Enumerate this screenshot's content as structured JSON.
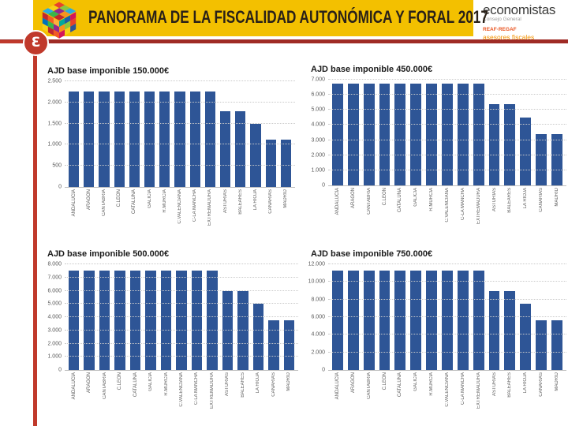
{
  "header": {
    "banner_title": "PANORAMA DE LA FISCALIDAD AUTONÓMICA Y FORAL 2017",
    "brand": {
      "name": "economistas",
      "subtitle": "Consejo General",
      "org": "REAF·REGAF",
      "org_subtitle": "asesores fiscales"
    },
    "emblem_letter": "Ɛ"
  },
  "colors": {
    "banner_bg": "#f3c000",
    "bar": "#2e5596",
    "accent_line": "#c0392b",
    "rule": "#9f2b25",
    "orange_brand": "#f39200"
  },
  "chart_data": [
    {
      "type": "bar",
      "title": "AJD base imponible 150.000€",
      "categories": [
        "ANDALUCÍA",
        "ARAGÓN",
        "CANTABRIA",
        "C.LEÓN",
        "CATALUÑA",
        "GALICIA",
        "R.MURCIA",
        "C.VALENCIANA",
        "C-LA MANCHA",
        "EXTREMADURA",
        "ASTURIAS",
        "BALEARES",
        "LA RIOJA",
        "CANARIAS",
        "MADRID"
      ],
      "values": [
        2250,
        2250,
        2250,
        2250,
        2250,
        2250,
        2250,
        2250,
        2250,
        2250,
        1800,
        1800,
        1500,
        1125,
        1125
      ],
      "xlabel": "",
      "ylabel": "",
      "ylim": [
        0,
        2500
      ],
      "ystep": 500,
      "grid": true,
      "legend": "none"
    },
    {
      "type": "bar",
      "title": "AJD base imponible 450.000€",
      "categories": [
        "ANDALUCÍA",
        "ARAGÓN",
        "CANTABRIA",
        "C.LEÓN",
        "CATALUÑA",
        "GALICIA",
        "R.MURCIA",
        "C.VALENCIANA",
        "C-LA MANCHA",
        "EXTREMADURA",
        "ASTURIAS",
        "BALEARES",
        "LA RIOJA",
        "CANARIAS",
        "MADRID"
      ],
      "values": [
        6750,
        6750,
        6750,
        6750,
        6750,
        6750,
        6750,
        6750,
        6750,
        6750,
        5400,
        5400,
        4500,
        3375,
        3375
      ],
      "xlabel": "",
      "ylabel": "",
      "ylim": [
        0,
        7000
      ],
      "ystep": 1000,
      "grid": true,
      "legend": "none"
    },
    {
      "type": "bar",
      "title": "AJD base imponible 500.000€",
      "categories": [
        "ANDALUCÍA",
        "ARAGÓN",
        "CANTABRIA",
        "C.LEÓN",
        "CATALUÑA",
        "GALICIA",
        "R.MURCIA",
        "C.VALENCIANA",
        "C-LA MANCHA",
        "EXTREMADURA",
        "ASTURIAS",
        "BALEARES",
        "LA RIOJA",
        "CANARIAS",
        "MADRID"
      ],
      "values": [
        7500,
        7500,
        7500,
        7500,
        7500,
        7500,
        7500,
        7500,
        7500,
        7500,
        6000,
        6000,
        5000,
        3750,
        3750
      ],
      "xlabel": "",
      "ylabel": "",
      "ylim": [
        0,
        8000
      ],
      "ystep": 1000,
      "grid": true,
      "legend": "none"
    },
    {
      "type": "bar",
      "title": "AJD base imponible 750.000€",
      "categories": [
        "ANDALUCÍA",
        "ARAGÓN",
        "CANTABRIA",
        "C.LEÓN",
        "CATALUÑA",
        "GALICIA",
        "R.MURCIA",
        "C.VALENCIANA",
        "C-LA MANCHA",
        "EXTREMADURA",
        "ASTURIAS",
        "BALEARES",
        "LA RIOJA",
        "CANARIAS",
        "MADRID"
      ],
      "values": [
        11250,
        11250,
        11250,
        11250,
        11250,
        11250,
        11250,
        11250,
        11250,
        11250,
        9000,
        9000,
        7500,
        5625,
        5625
      ],
      "xlabel": "",
      "ylabel": "",
      "ylim": [
        0,
        12000
      ],
      "ystep": 2000,
      "grid": true,
      "legend": "none"
    }
  ]
}
